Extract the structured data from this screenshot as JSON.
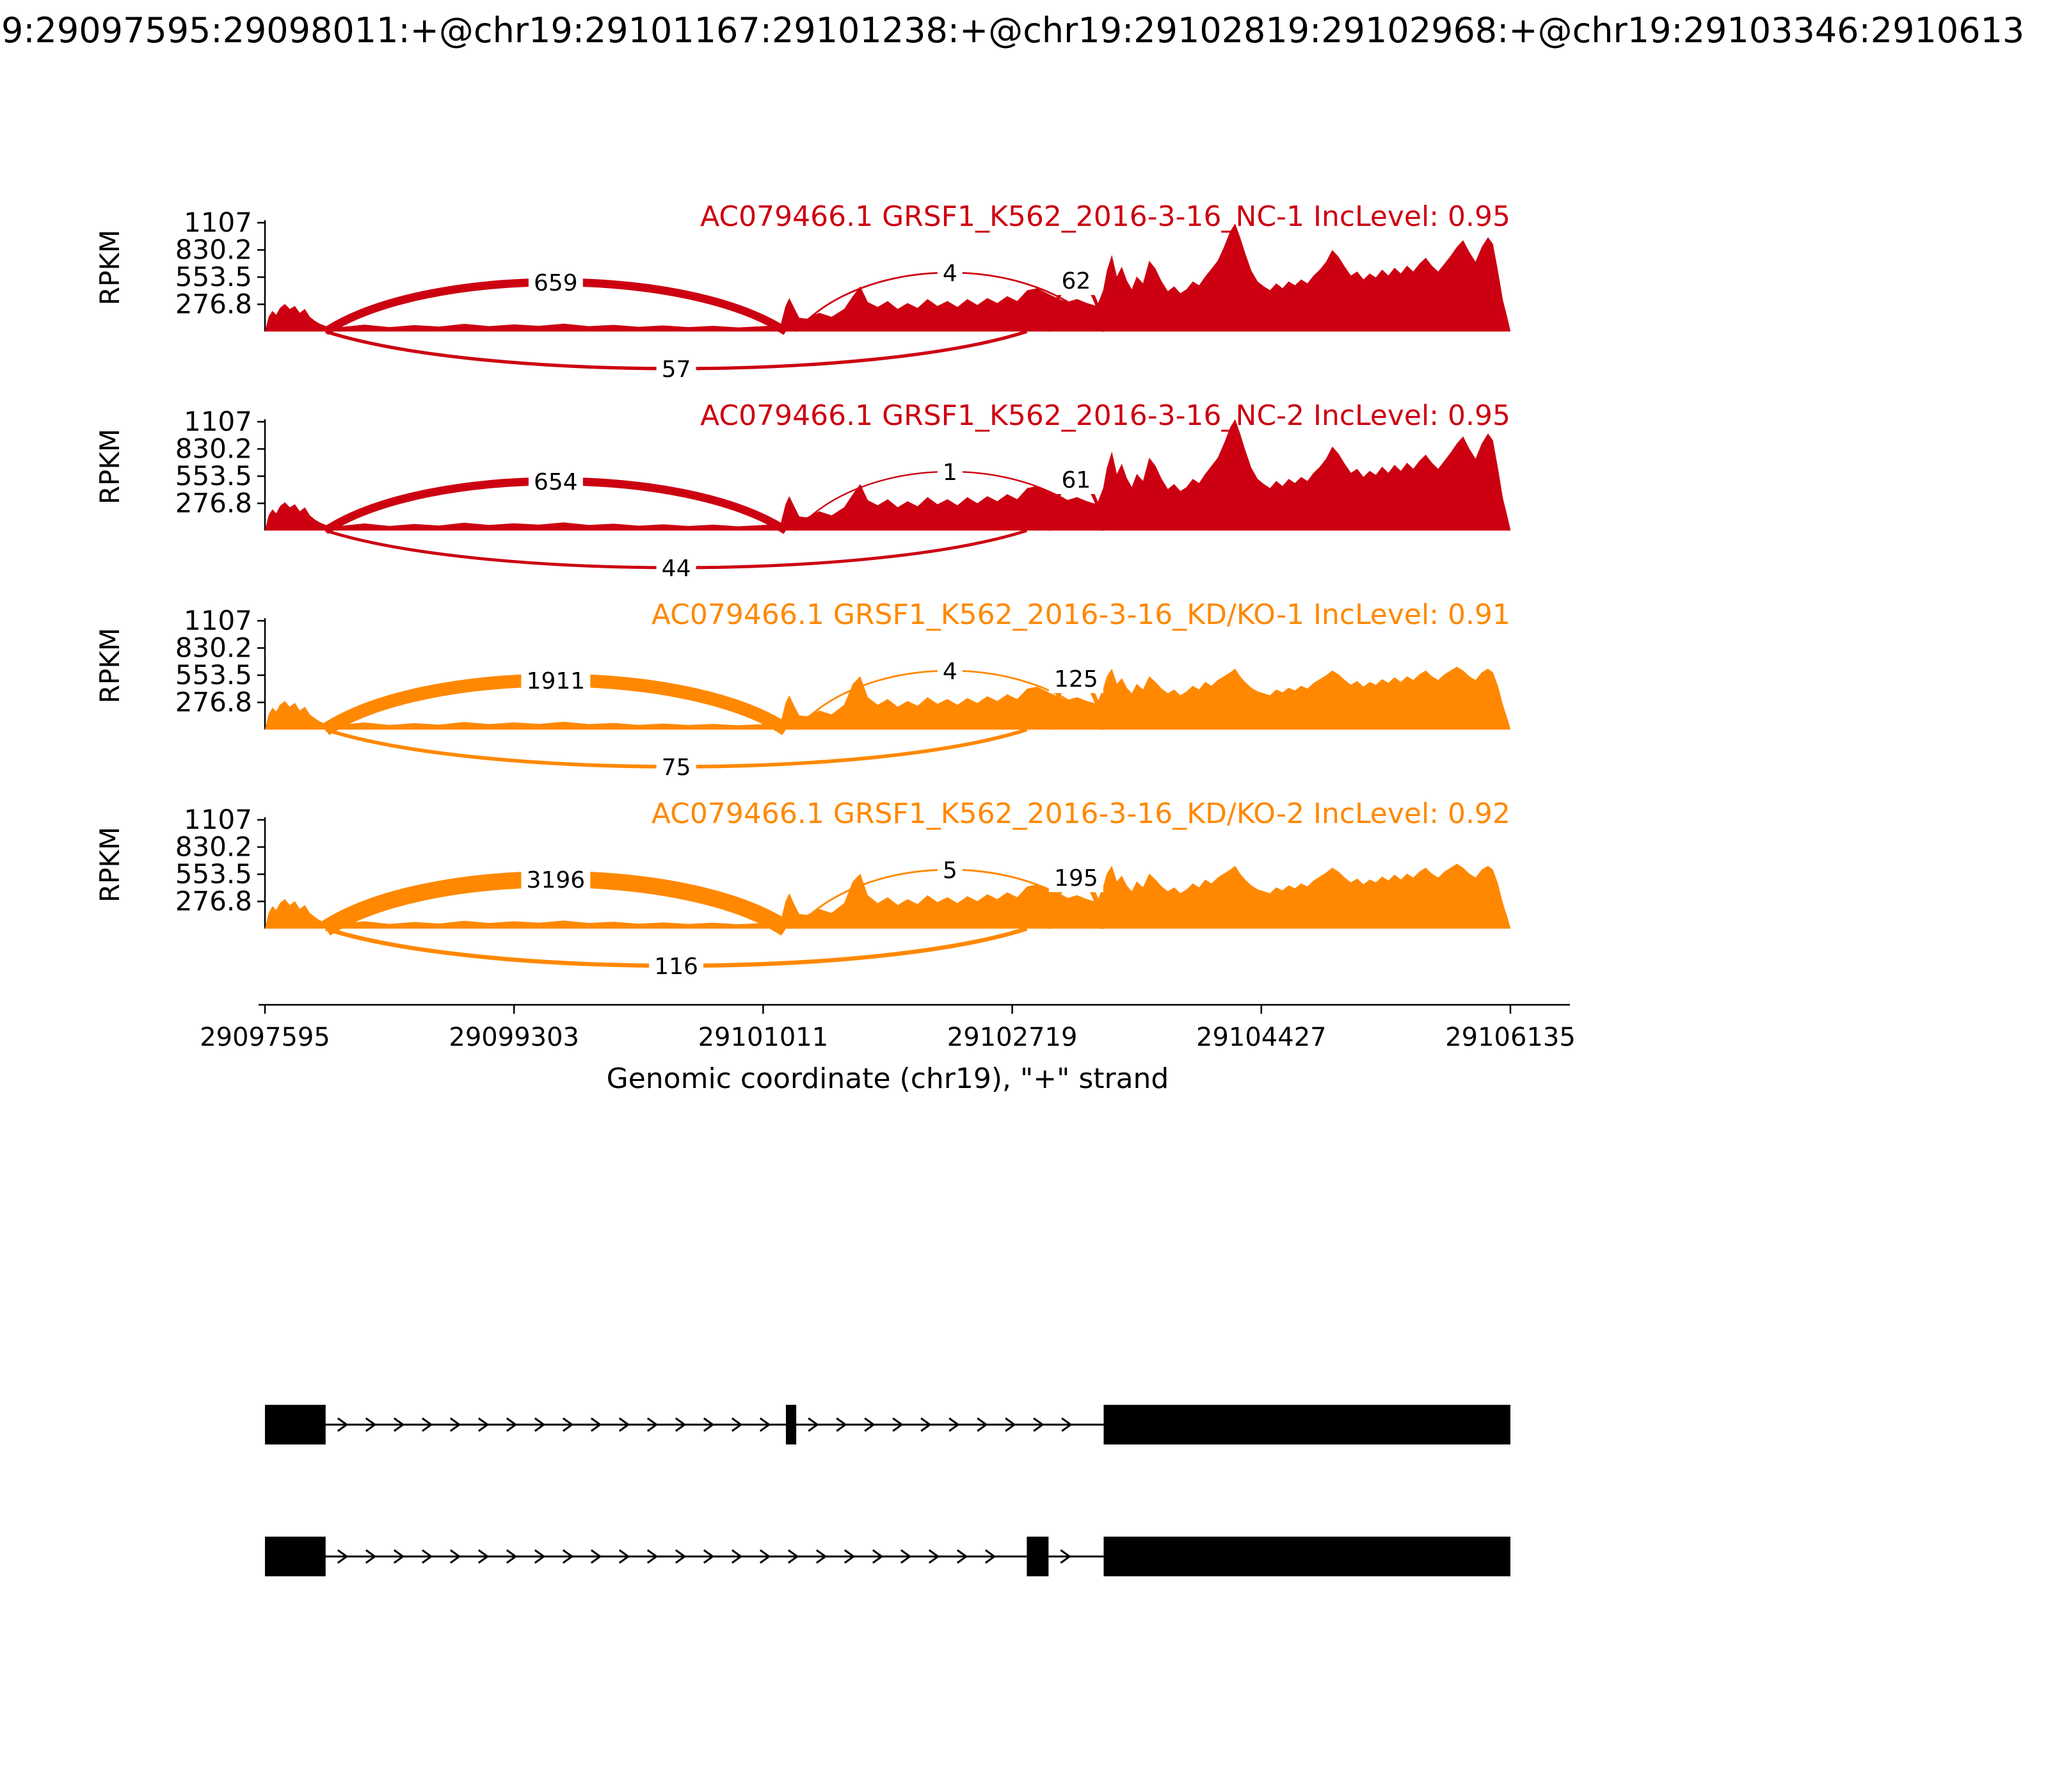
{
  "header": {
    "title": "9:29097595:29098011:+@chr19:29101167:29101238:+@chr19:29102819:29102968:+@chr19:29103346:2910613"
  },
  "chart_data": {
    "type": "area",
    "variant": "sashimi-plot",
    "x_axis": {
      "label": "Genomic coordinate (chr19), \"+\" strand",
      "domain": [
        29097595,
        29106135
      ],
      "ticks": [
        29097595,
        29099303,
        29101011,
        29102719,
        29104427,
        29106135
      ]
    },
    "y_axis": {
      "label": "RPKM",
      "max": 1107,
      "ticks": [
        {
          "label": "276.8",
          "value": 276.8
        },
        {
          "label": "553.5",
          "value": 553.5
        },
        {
          "label": "830.2",
          "value": 830.2
        },
        {
          "label": "1107",
          "value": 1107
        }
      ]
    },
    "junctions": [
      {
        "name": "upstream-to-mxe1",
        "from": 29098011,
        "to": 29101167,
        "side": "top",
        "apex": 77
      },
      {
        "name": "mxe1-to-downstream",
        "from": 29101238,
        "to": 29103346,
        "side": "top",
        "apex": 92
      },
      {
        "name": "mxe2-to-downstream",
        "from": 29102968,
        "to": 29103346,
        "side": "top",
        "apex": 80
      },
      {
        "name": "upstream-to-mxe2",
        "from": 29098011,
        "to": 29102819,
        "side": "bottom",
        "apex": 58
      }
    ],
    "tracks": [
      {
        "title": "AC079466.1 GRSF1_K562_2016-3-16_NC-1 IncLevel: 0.95",
        "color": "#CC0011",
        "inc_level": 0.95,
        "junction_counts": [
          659,
          4,
          62,
          57
        ],
        "profile": "NC",
        "scale": 1.0
      },
      {
        "title": "AC079466.1 GRSF1_K562_2016-3-16_NC-2 IncLevel: 0.95",
        "color": "#CC0011",
        "inc_level": 0.95,
        "junction_counts": [
          654,
          1,
          61,
          44
        ],
        "profile": "NC",
        "scale": 1.03
      },
      {
        "title": "AC079466.1 GRSF1_K562_2016-3-16_KD/KO-1 IncLevel: 0.91",
        "color": "#FF8800",
        "inc_level": 0.91,
        "junction_counts": [
          1911,
          4,
          125,
          75
        ],
        "profile": "KD",
        "scale": 0.97
      },
      {
        "title": "AC079466.1 GRSF1_K562_2016-3-16_KD/KO-2 IncLevel: 0.92",
        "color": "#FF8800",
        "inc_level": 0.92,
        "junction_counts": [
          3196,
          5,
          195,
          116
        ],
        "profile": "KD",
        "scale": 1.0
      }
    ],
    "coverage_profiles": {
      "NC": [
        [
          0.0,
          5
        ],
        [
          0.003,
          150
        ],
        [
          0.006,
          210
        ],
        [
          0.009,
          170
        ],
        [
          0.012,
          240
        ],
        [
          0.016,
          280
        ],
        [
          0.02,
          230
        ],
        [
          0.024,
          260
        ],
        [
          0.028,
          190
        ],
        [
          0.032,
          230
        ],
        [
          0.036,
          150
        ],
        [
          0.04,
          110
        ],
        [
          0.044,
          80
        ],
        [
          0.049,
          55
        ],
        [
          0.06,
          45
        ],
        [
          0.08,
          70
        ],
        [
          0.1,
          45
        ],
        [
          0.12,
          65
        ],
        [
          0.14,
          50
        ],
        [
          0.16,
          78
        ],
        [
          0.18,
          55
        ],
        [
          0.2,
          72
        ],
        [
          0.22,
          58
        ],
        [
          0.24,
          80
        ],
        [
          0.26,
          55
        ],
        [
          0.28,
          68
        ],
        [
          0.3,
          48
        ],
        [
          0.32,
          62
        ],
        [
          0.34,
          45
        ],
        [
          0.36,
          58
        ],
        [
          0.38,
          42
        ],
        [
          0.4,
          55
        ],
        [
          0.414,
          65
        ],
        [
          0.418,
          260
        ],
        [
          0.421,
          340
        ],
        [
          0.425,
          240
        ],
        [
          0.429,
          140
        ],
        [
          0.435,
          130
        ],
        [
          0.445,
          190
        ],
        [
          0.455,
          150
        ],
        [
          0.465,
          230
        ],
        [
          0.472,
          360
        ],
        [
          0.478,
          460
        ],
        [
          0.484,
          300
        ],
        [
          0.492,
          250
        ],
        [
          0.5,
          310
        ],
        [
          0.508,
          230
        ],
        [
          0.516,
          290
        ],
        [
          0.524,
          240
        ],
        [
          0.532,
          330
        ],
        [
          0.54,
          260
        ],
        [
          0.548,
          310
        ],
        [
          0.556,
          250
        ],
        [
          0.564,
          330
        ],
        [
          0.572,
          270
        ],
        [
          0.58,
          340
        ],
        [
          0.588,
          290
        ],
        [
          0.596,
          360
        ],
        [
          0.604,
          310
        ],
        [
          0.612,
          420
        ],
        [
          0.62,
          440
        ],
        [
          0.628,
          390
        ],
        [
          0.636,
          340
        ],
        [
          0.644,
          300
        ],
        [
          0.652,
          330
        ],
        [
          0.66,
          290
        ],
        [
          0.668,
          260
        ],
        [
          0.673,
          420
        ],
        [
          0.676,
          620
        ],
        [
          0.68,
          780
        ],
        [
          0.684,
          560
        ],
        [
          0.688,
          660
        ],
        [
          0.692,
          520
        ],
        [
          0.696,
          430
        ],
        [
          0.7,
          560
        ],
        [
          0.705,
          490
        ],
        [
          0.71,
          720
        ],
        [
          0.715,
          640
        ],
        [
          0.72,
          510
        ],
        [
          0.725,
          410
        ],
        [
          0.73,
          460
        ],
        [
          0.735,
          390
        ],
        [
          0.74,
          430
        ],
        [
          0.745,
          510
        ],
        [
          0.75,
          470
        ],
        [
          0.755,
          560
        ],
        [
          0.76,
          640
        ],
        [
          0.765,
          720
        ],
        [
          0.77,
          860
        ],
        [
          0.775,
          1020
        ],
        [
          0.779,
          1100
        ],
        [
          0.783,
          960
        ],
        [
          0.787,
          800
        ],
        [
          0.792,
          620
        ],
        [
          0.797,
          510
        ],
        [
          0.802,
          460
        ],
        [
          0.807,
          420
        ],
        [
          0.812,
          490
        ],
        [
          0.817,
          440
        ],
        [
          0.822,
          510
        ],
        [
          0.827,
          470
        ],
        [
          0.832,
          530
        ],
        [
          0.837,
          490
        ],
        [
          0.842,
          570
        ],
        [
          0.847,
          630
        ],
        [
          0.852,
          710
        ],
        [
          0.857,
          830
        ],
        [
          0.862,
          760
        ],
        [
          0.867,
          660
        ],
        [
          0.872,
          570
        ],
        [
          0.877,
          610
        ],
        [
          0.882,
          530
        ],
        [
          0.887,
          590
        ],
        [
          0.892,
          550
        ],
        [
          0.897,
          630
        ],
        [
          0.902,
          570
        ],
        [
          0.907,
          650
        ],
        [
          0.912,
          590
        ],
        [
          0.917,
          670
        ],
        [
          0.922,
          610
        ],
        [
          0.927,
          690
        ],
        [
          0.932,
          750
        ],
        [
          0.937,
          670
        ],
        [
          0.942,
          610
        ],
        [
          0.947,
          690
        ],
        [
          0.952,
          770
        ],
        [
          0.957,
          860
        ],
        [
          0.962,
          930
        ],
        [
          0.967,
          810
        ],
        [
          0.972,
          710
        ],
        [
          0.977,
          860
        ],
        [
          0.982,
          960
        ],
        [
          0.986,
          890
        ],
        [
          0.99,
          620
        ],
        [
          0.994,
          320
        ],
        [
          0.998,
          120
        ],
        [
          1.0,
          10
        ]
      ],
      "KD": [
        [
          0.0,
          5
        ],
        [
          0.003,
          160
        ],
        [
          0.006,
          230
        ],
        [
          0.009,
          190
        ],
        [
          0.012,
          260
        ],
        [
          0.016,
          300
        ],
        [
          0.02,
          240
        ],
        [
          0.024,
          280
        ],
        [
          0.028,
          200
        ],
        [
          0.032,
          240
        ],
        [
          0.036,
          160
        ],
        [
          0.04,
          120
        ],
        [
          0.044,
          85
        ],
        [
          0.049,
          60
        ],
        [
          0.06,
          50
        ],
        [
          0.08,
          75
        ],
        [
          0.1,
          48
        ],
        [
          0.12,
          68
        ],
        [
          0.14,
          52
        ],
        [
          0.16,
          80
        ],
        [
          0.18,
          58
        ],
        [
          0.2,
          75
        ],
        [
          0.22,
          60
        ],
        [
          0.24,
          82
        ],
        [
          0.26,
          58
        ],
        [
          0.28,
          70
        ],
        [
          0.3,
          50
        ],
        [
          0.32,
          64
        ],
        [
          0.34,
          48
        ],
        [
          0.36,
          60
        ],
        [
          0.38,
          45
        ],
        [
          0.4,
          58
        ],
        [
          0.414,
          70
        ],
        [
          0.418,
          280
        ],
        [
          0.421,
          360
        ],
        [
          0.425,
          250
        ],
        [
          0.429,
          150
        ],
        [
          0.435,
          140
        ],
        [
          0.445,
          200
        ],
        [
          0.455,
          160
        ],
        [
          0.465,
          260
        ],
        [
          0.472,
          480
        ],
        [
          0.478,
          560
        ],
        [
          0.484,
          340
        ],
        [
          0.492,
          260
        ],
        [
          0.5,
          320
        ],
        [
          0.508,
          240
        ],
        [
          0.516,
          300
        ],
        [
          0.524,
          250
        ],
        [
          0.532,
          340
        ],
        [
          0.54,
          270
        ],
        [
          0.548,
          320
        ],
        [
          0.556,
          260
        ],
        [
          0.564,
          330
        ],
        [
          0.572,
          280
        ],
        [
          0.58,
          350
        ],
        [
          0.588,
          300
        ],
        [
          0.596,
          370
        ],
        [
          0.604,
          320
        ],
        [
          0.612,
          430
        ],
        [
          0.62,
          450
        ],
        [
          0.628,
          400
        ],
        [
          0.636,
          350
        ],
        [
          0.644,
          310
        ],
        [
          0.652,
          340
        ],
        [
          0.66,
          300
        ],
        [
          0.668,
          270
        ],
        [
          0.673,
          430
        ],
        [
          0.676,
          560
        ],
        [
          0.68,
          640
        ],
        [
          0.684,
          480
        ],
        [
          0.688,
          540
        ],
        [
          0.692,
          440
        ],
        [
          0.696,
          380
        ],
        [
          0.7,
          480
        ],
        [
          0.705,
          420
        ],
        [
          0.71,
          560
        ],
        [
          0.715,
          500
        ],
        [
          0.72,
          430
        ],
        [
          0.725,
          380
        ],
        [
          0.73,
          420
        ],
        [
          0.735,
          360
        ],
        [
          0.74,
          400
        ],
        [
          0.745,
          460
        ],
        [
          0.75,
          420
        ],
        [
          0.755,
          500
        ],
        [
          0.76,
          460
        ],
        [
          0.765,
          520
        ],
        [
          0.77,
          560
        ],
        [
          0.775,
          600
        ],
        [
          0.779,
          640
        ],
        [
          0.783,
          560
        ],
        [
          0.787,
          500
        ],
        [
          0.792,
          440
        ],
        [
          0.797,
          400
        ],
        [
          0.802,
          380
        ],
        [
          0.807,
          360
        ],
        [
          0.812,
          420
        ],
        [
          0.817,
          390
        ],
        [
          0.822,
          440
        ],
        [
          0.827,
          410
        ],
        [
          0.832,
          460
        ],
        [
          0.837,
          430
        ],
        [
          0.842,
          490
        ],
        [
          0.847,
          530
        ],
        [
          0.852,
          570
        ],
        [
          0.857,
          620
        ],
        [
          0.862,
          580
        ],
        [
          0.867,
          520
        ],
        [
          0.872,
          470
        ],
        [
          0.877,
          510
        ],
        [
          0.882,
          450
        ],
        [
          0.887,
          500
        ],
        [
          0.892,
          470
        ],
        [
          0.897,
          530
        ],
        [
          0.902,
          490
        ],
        [
          0.907,
          550
        ],
        [
          0.912,
          500
        ],
        [
          0.917,
          560
        ],
        [
          0.922,
          520
        ],
        [
          0.927,
          580
        ],
        [
          0.932,
          620
        ],
        [
          0.937,
          560
        ],
        [
          0.942,
          520
        ],
        [
          0.947,
          580
        ],
        [
          0.952,
          620
        ],
        [
          0.957,
          660
        ],
        [
          0.962,
          620
        ],
        [
          0.967,
          560
        ],
        [
          0.972,
          520
        ],
        [
          0.977,
          600
        ],
        [
          0.982,
          640
        ],
        [
          0.986,
          600
        ],
        [
          0.99,
          460
        ],
        [
          0.994,
          260
        ],
        [
          0.998,
          100
        ],
        [
          1.0,
          10
        ]
      ]
    },
    "gene_models": {
      "color": "#000000",
      "isoforms": [
        {
          "name": "isoform-mxe1",
          "exons": [
            [
              29097595,
              29098011
            ],
            [
              29101167,
              29101238
            ],
            [
              29103346,
              29106135
            ]
          ]
        },
        {
          "name": "isoform-mxe2",
          "exons": [
            [
              29097595,
              29098011
            ],
            [
              29102819,
              29102968
            ],
            [
              29103346,
              29106135
            ]
          ]
        }
      ]
    }
  }
}
